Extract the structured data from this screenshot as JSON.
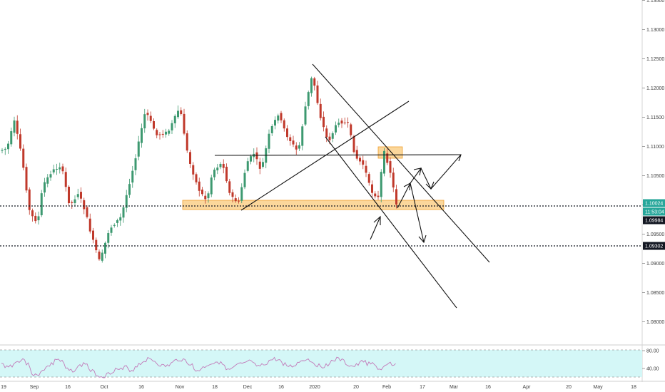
{
  "chart_data": [
    {
      "type": "candlestick",
      "ylim": [
        1.077,
        1.136
      ],
      "y_ticks": [
        "1.13500",
        "1.13000",
        "1.12500",
        "1.12000",
        "1.11500",
        "1.11000",
        "1.10500",
        "1.10000",
        "1.09500",
        "1.09000",
        "1.08500",
        "1.08000"
      ],
      "x_ticks": [
        "19",
        "Sep",
        "16",
        "Oct",
        "16",
        "Nov",
        "18",
        "Dec",
        "16",
        "2020",
        "20",
        "Feb",
        "17",
        "Mar",
        "16",
        "Apr",
        "20",
        "May",
        "18"
      ],
      "price_badges": [
        {
          "label": "1.10024",
          "value": 1.10024,
          "color": "#26a69a"
        },
        {
          "label": "11:53:04",
          "value": 1.0996,
          "color": "#26a69a"
        },
        {
          "label": "1.09984",
          "value": 1.0986,
          "color": "#131722"
        },
        {
          "label": "1.09302",
          "value": 1.09302,
          "color": "#131722"
        }
      ],
      "horizontal_lines": [
        {
          "value": 1.09984,
          "style": "dotted"
        },
        {
          "value": 1.09302,
          "style": "dotted"
        }
      ],
      "colors": {
        "up": "#3d9970",
        "down": "#c0392b",
        "zone": "#f5b041",
        "rsi_band": "#cff7f7",
        "rsi_line": "#c07ab8"
      }
    },
    {
      "type": "line",
      "name": "RSI",
      "ylim": [
        20,
        90
      ],
      "y_ticks": [
        "80.00",
        "40.00"
      ],
      "band": [
        30,
        70
      ]
    }
  ]
}
